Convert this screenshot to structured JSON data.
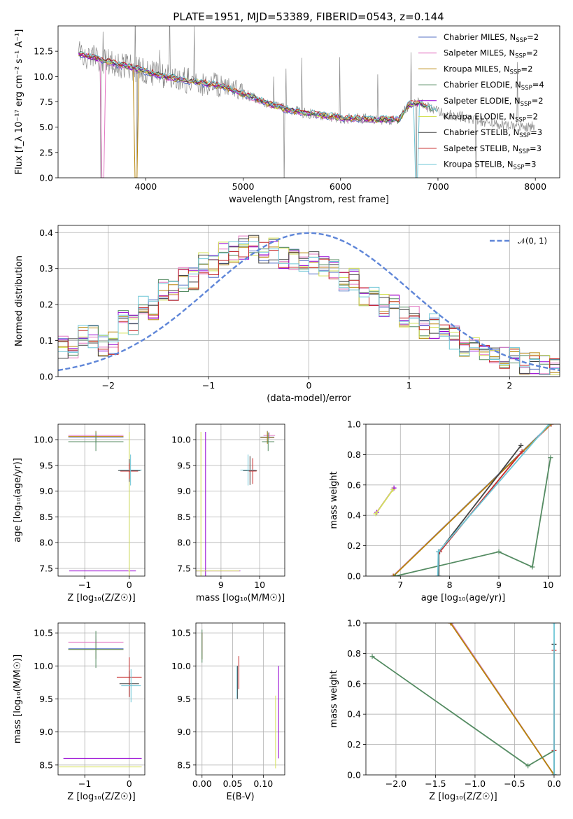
{
  "figure_title": "PLATE=1951, MJD=53389, FIBERID=0543, z=0.144",
  "series": [
    {
      "name": "Chabrier MILES, N",
      "sub": "SSP",
      "tail": "=2",
      "color": "#5470c6"
    },
    {
      "name": "Salpeter MILES, N",
      "sub": "SSP",
      "tail": "=2",
      "color": "#e377c2"
    },
    {
      "name": "Kroupa MILES, N",
      "sub": "SSP",
      "tail": "=2",
      "color": "#b8860b"
    },
    {
      "name": "Chabrier ELODIE, N",
      "sub": "SSP",
      "tail": "=4",
      "color": "#548b62"
    },
    {
      "name": "Salpeter ELODIE, N",
      "sub": "SSP",
      "tail": "=2",
      "color": "#9400d3"
    },
    {
      "name": "Kroupa ELODIE, N",
      "sub": "SSP",
      "tail": "=2",
      "color": "#d4e157"
    },
    {
      "name": "Chabrier STELIB, N",
      "sub": "SSP",
      "tail": "=3",
      "color": "#444444"
    },
    {
      "name": "Salpeter STELIB, N",
      "sub": "SSP",
      "tail": "=3",
      "color": "#c62828"
    },
    {
      "name": "Kroupa STELIB, N",
      "sub": "SSP",
      "tail": "=3",
      "color": "#6ec6d6"
    }
  ],
  "chart_data": [
    {
      "id": "spectrum",
      "type": "line",
      "xlabel": "wavelength [Angstrom, rest frame]",
      "ylabel": "Flux [f_λ 10⁻¹⁷ erg cm⁻² s⁻¹ A⁻¹]",
      "xlim": [
        3100,
        8250
      ],
      "ylim": [
        0,
        15
      ],
      "xticks": [
        "4000",
        "5000",
        "6000",
        "7000",
        "8000"
      ],
      "yticks": [
        "0.0",
        "2.5",
        "5.0",
        "7.5",
        "10.0",
        "12.5"
      ],
      "continuum": [
        [
          3310,
          12.3
        ],
        [
          3400,
          12.0
        ],
        [
          3600,
          11.5
        ],
        [
          3800,
          11.0
        ],
        [
          4000,
          10.5
        ],
        [
          4200,
          10.0
        ],
        [
          4500,
          9.5
        ],
        [
          4800,
          9.0
        ],
        [
          5000,
          8.3
        ],
        [
          5300,
          7.2
        ],
        [
          5500,
          6.6
        ],
        [
          5800,
          6.2
        ],
        [
          6000,
          5.9
        ],
        [
          6300,
          5.8
        ],
        [
          6600,
          5.7
        ],
        [
          6700,
          7.2
        ],
        [
          6800,
          7.4
        ],
        [
          7000,
          6.5
        ],
        [
          7300,
          5.9
        ],
        [
          7600,
          5.3
        ],
        [
          8000,
          5.0
        ]
      ],
      "observed_dips": [
        [
          3540,
          0.0
        ],
        [
          3910,
          0.0
        ],
        [
          5420,
          0.0
        ],
        [
          6780,
          0.0
        ],
        [
          7390,
          0.0
        ]
      ]
    },
    {
      "id": "residuals",
      "type": "line",
      "xlabel": "(data-model)/error",
      "ylabel": "Normed distribution",
      "xlim": [
        -2.5,
        2.5
      ],
      "ylim": [
        0,
        0.42
      ],
      "xticks": [
        "−2",
        "−1",
        "0",
        "1",
        "2"
      ],
      "yticks": [
        "0.0",
        "0.1",
        "0.2",
        "0.3",
        "0.4"
      ],
      "reference_label": "𝒩(0, 1)",
      "bin_centers": [
        -2.4,
        -2.2,
        -2.0,
        -1.8,
        -1.6,
        -1.4,
        -1.2,
        -1.0,
        -0.8,
        -0.6,
        -0.4,
        -0.2,
        0.0,
        0.2,
        0.4,
        0.6,
        0.8,
        1.0,
        1.2,
        1.4,
        1.6,
        1.8,
        2.0,
        2.2,
        2.4
      ],
      "histogram_mean": [
        0.08,
        0.11,
        0.09,
        0.15,
        0.19,
        0.24,
        0.27,
        0.31,
        0.34,
        0.36,
        0.35,
        0.33,
        0.32,
        0.3,
        0.27,
        0.23,
        0.2,
        0.17,
        0.14,
        0.11,
        0.09,
        0.07,
        0.05,
        0.035,
        0.025
      ]
    },
    {
      "id": "age_vs_Z",
      "type": "scatter",
      "xlabel": "Z [log₁₀(Z/Z☉)]",
      "ylabel": "age  [log₁₀(age/yr)]",
      "xlim": [
        -1.6,
        0.35
      ],
      "ylim": [
        7.35,
        10.3
      ],
      "xticks": [
        "−1",
        "0"
      ],
      "yticks": [
        "7.5",
        "8.0",
        "8.5",
        "9.0",
        "9.5",
        "10.0"
      ],
      "points": [
        {
          "series": 0,
          "x": -0.75,
          "y": 10.05,
          "dx": 0.62,
          "dy": 0.12
        },
        {
          "series": 1,
          "x": -0.75,
          "y": 10.08,
          "dx": 0.62,
          "dy": 0.06
        },
        {
          "series": 2,
          "x": -0.75,
          "y": 10.06,
          "dx": 0.62,
          "dy": 0.1
        },
        {
          "series": 3,
          "x": -0.75,
          "y": 9.96,
          "dx": 0.62,
          "dy": 0.18
        },
        {
          "series": 4,
          "x": -0.6,
          "y": 7.45,
          "dx": 0.75,
          "dy": 0.0
        },
        {
          "series": 5,
          "x": 0.0,
          "y": 7.45,
          "dx": 0.02,
          "dy": 2.7
        },
        {
          "series": 6,
          "x": 0.0,
          "y": 9.4,
          "dx": 0.25,
          "dy": 0.22
        },
        {
          "series": 7,
          "x": 0.0,
          "y": 9.39,
          "dx": 0.2,
          "dy": 0.15
        },
        {
          "series": 8,
          "x": 0.03,
          "y": 9.41,
          "dx": 0.25,
          "dy": 0.3
        }
      ]
    },
    {
      "id": "age_vs_mass",
      "type": "scatter",
      "xlabel": "mass [log₁₀(M/M☉)]",
      "ylabel": "",
      "xlim": [
        8.35,
        10.65
      ],
      "ylim": [
        7.35,
        10.3
      ],
      "xticks": [
        "9",
        "10"
      ],
      "yticks": [
        "7.5",
        "8.0",
        "8.5",
        "9.0",
        "9.5",
        "10.0"
      ],
      "points": [
        {
          "series": 0,
          "x": 10.2,
          "y": 10.05,
          "dx": 0.18,
          "dy": 0.12
        },
        {
          "series": 1,
          "x": 10.25,
          "y": 10.08,
          "dx": 0.15,
          "dy": 0.06
        },
        {
          "series": 2,
          "x": 10.2,
          "y": 10.04,
          "dx": 0.18,
          "dy": 0.12
        },
        {
          "series": 3,
          "x": 10.22,
          "y": 9.96,
          "dx": 0.16,
          "dy": 0.18
        },
        {
          "series": 4,
          "x": 8.6,
          "y": 7.45,
          "dx": 0.9,
          "dy": 2.7
        },
        {
          "series": 5,
          "x": 8.48,
          "y": 7.45,
          "dx": 1.0,
          "dy": 2.7
        },
        {
          "series": 6,
          "x": 9.75,
          "y": 9.4,
          "dx": 0.18,
          "dy": 0.28
        },
        {
          "series": 7,
          "x": 9.82,
          "y": 9.39,
          "dx": 0.1,
          "dy": 0.25
        },
        {
          "series": 8,
          "x": 9.7,
          "y": 9.41,
          "dx": 0.2,
          "dy": 0.3
        }
      ]
    },
    {
      "id": "weight_vs_age",
      "type": "line",
      "xlabel": "age  [log₁₀(age/yr)]",
      "ylabel": "mass weight",
      "xlim": [
        6.3,
        10.25
      ],
      "ylim": [
        0,
        1
      ],
      "xticks": [
        "7",
        "8",
        "9",
        "10"
      ],
      "yticks": [
        "0.0",
        "0.2",
        "0.4",
        "0.6",
        "0.8",
        "1.0"
      ],
      "lines": [
        {
          "series": 4,
          "points": [
            [
              6.52,
              0.42
            ],
            [
              6.87,
              0.58
            ]
          ]
        },
        {
          "series": 5,
          "points": [
            [
              6.5,
              0.41
            ],
            [
              6.85,
              0.57
            ]
          ]
        },
        {
          "series": 0,
          "points": [
            [
              6.85,
              0.0
            ],
            [
              10.05,
              1.0
            ]
          ]
        },
        {
          "series": 1,
          "points": [
            [
              6.85,
              0.0
            ],
            [
              10.07,
              1.0
            ]
          ]
        },
        {
          "series": 2,
          "points": [
            [
              6.86,
              0.0
            ],
            [
              10.06,
              1.0
            ]
          ]
        },
        {
          "series": 3,
          "points": [
            [
              6.9,
              0.0
            ],
            [
              9.0,
              0.16
            ],
            [
              9.68,
              0.06
            ],
            [
              10.05,
              0.78
            ]
          ]
        },
        {
          "series": 6,
          "points": [
            [
              7.78,
              0.0
            ],
            [
              7.78,
              0.16
            ],
            [
              9.45,
              0.86
            ]
          ]
        },
        {
          "series": 7,
          "points": [
            [
              7.8,
              0.16
            ],
            [
              9.47,
              0.82
            ]
          ]
        },
        {
          "series": 8,
          "points": [
            [
              7.76,
              0.0
            ],
            [
              7.77,
              0.16
            ],
            [
              10.02,
              1.0
            ]
          ]
        }
      ]
    },
    {
      "id": "mass_vs_Z",
      "type": "scatter",
      "xlabel": "Z [log₁₀(Z/Z☉)]",
      "ylabel": "mass [log₁₀(M/M☉)]",
      "xlim": [
        -1.6,
        0.35
      ],
      "ylim": [
        8.35,
        10.65
      ],
      "xticks": [
        "−1",
        "0"
      ],
      "yticks": [
        "8.5",
        "9.0",
        "9.5",
        "10.0",
        "10.5"
      ],
      "points": [
        {
          "series": 0,
          "x": -0.75,
          "y": 10.26,
          "dx": 0.62,
          "dy": 0.15
        },
        {
          "series": 1,
          "x": -0.75,
          "y": 10.36,
          "dx": 0.62,
          "dy": 0.1
        },
        {
          "series": 2,
          "x": -0.75,
          "y": 10.25,
          "dx": 0.62,
          "dy": 0.14
        },
        {
          "series": 3,
          "x": -0.75,
          "y": 10.25,
          "dx": 0.62,
          "dy": 0.28
        },
        {
          "series": 4,
          "x": -0.6,
          "y": 8.6,
          "dx": 0.88,
          "dy": 0.0
        },
        {
          "series": 5,
          "x": -0.65,
          "y": 8.47,
          "dx": 0.93,
          "dy": 0.0
        },
        {
          "series": 6,
          "x": 0.0,
          "y": 9.73,
          "dx": 0.22,
          "dy": 0.2
        },
        {
          "series": 7,
          "x": 0.0,
          "y": 9.83,
          "dx": 0.28,
          "dy": 0.3
        },
        {
          "series": 8,
          "x": 0.04,
          "y": 9.7,
          "dx": 0.22,
          "dy": 0.25
        }
      ]
    },
    {
      "id": "mass_vs_EBV",
      "type": "scatter",
      "xlabel": "E(B-V)",
      "ylabel": "",
      "xlim": [
        -0.01,
        0.135
      ],
      "ylim": [
        8.35,
        10.65
      ],
      "xticks": [
        "0.00",
        "0.05",
        "0.10"
      ],
      "yticks": [
        "8.5",
        "9.0",
        "9.5",
        "10.0",
        "10.5"
      ],
      "points": [
        {
          "series": 0,
          "x": 0.0,
          "y": 10.3,
          "dx": 0.0,
          "dy": 0.2
        },
        {
          "series": 1,
          "x": 0.0,
          "y": 10.36,
          "dx": 0.0,
          "dy": 0.15
        },
        {
          "series": 2,
          "x": 0.0,
          "y": 10.3,
          "dx": 0.0,
          "dy": 0.2
        },
        {
          "series": 3,
          "x": 0.0,
          "y": 10.3,
          "dx": 0.0,
          "dy": 0.25
        },
        {
          "series": 4,
          "x": 0.125,
          "y": 9.3,
          "dx": 0.0,
          "dy": 0.7
        },
        {
          "series": 5,
          "x": 0.12,
          "y": 9.0,
          "dx": 0.0,
          "dy": 0.55
        },
        {
          "series": 6,
          "x": 0.058,
          "y": 9.75,
          "dx": 0.0,
          "dy": 0.25
        },
        {
          "series": 7,
          "x": 0.06,
          "y": 9.9,
          "dx": 0.0,
          "dy": 0.25
        },
        {
          "series": 8,
          "x": 0.057,
          "y": 9.75,
          "dx": 0.0,
          "dy": 0.25
        }
      ]
    },
    {
      "id": "weight_vs_Z",
      "type": "line",
      "xlabel": "Z [log₁₀(Z/Z☉)]",
      "ylabel": "mass weight",
      "xlim": [
        -2.38,
        0.08
      ],
      "ylim": [
        0,
        1
      ],
      "xticks": [
        "−2.0",
        "−1.5",
        "−1.0",
        "−0.5",
        "0.0"
      ],
      "yticks": [
        "0.0",
        "0.2",
        "0.4",
        "0.6",
        "0.8",
        "1.0"
      ],
      "lines": [
        {
          "series": 0,
          "points": [
            [
              -1.3,
              1.0
            ],
            [
              0.0,
              0.0
            ]
          ]
        },
        {
          "series": 1,
          "points": [
            [
              -1.3,
              1.0
            ],
            [
              0.0,
              0.0
            ]
          ]
        },
        {
          "series": 2,
          "points": [
            [
              -1.31,
              1.0
            ],
            [
              0.0,
              0.0
            ]
          ]
        },
        {
          "series": 3,
          "points": [
            [
              -2.3,
              0.78
            ],
            [
              -0.33,
              0.06
            ],
            [
              0.0,
              0.16
            ]
          ]
        },
        {
          "series": 6,
          "points": [
            [
              0.0,
              0.86
            ],
            [
              0.0,
              0.0
            ]
          ]
        },
        {
          "series": 7,
          "points": [
            [
              0.0,
              0.82
            ],
            [
              0.0,
              0.16
            ]
          ]
        },
        {
          "series": 8,
          "points": [
            [
              0.0,
              1.0
            ],
            [
              0.0,
              0.0
            ]
          ]
        }
      ]
    }
  ]
}
